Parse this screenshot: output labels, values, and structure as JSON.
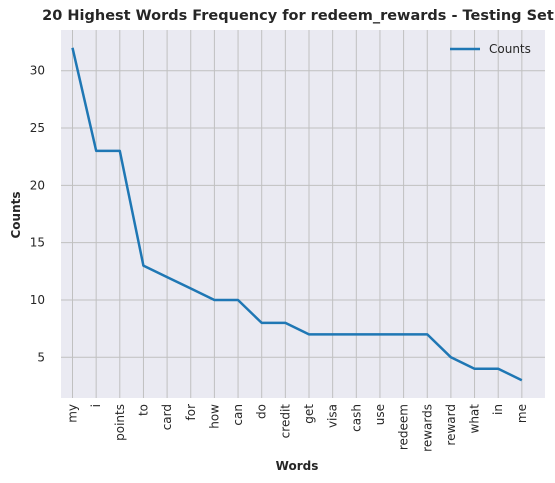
{
  "colors": {
    "plot_background": "#eaeaf2",
    "grid": "#c0c0c0",
    "line": "#1f77b4"
  },
  "chart_data": {
    "type": "line",
    "title": "20 Highest Words Frequency for redeem_rewards - Testing Set",
    "xlabel": "Words",
    "ylabel": "Counts",
    "categories": [
      "my",
      "i",
      "points",
      "to",
      "card",
      "for",
      "how",
      "can",
      "do",
      "credit",
      "get",
      "visa",
      "cash",
      "use",
      "redeem",
      "rewards",
      "reward",
      "what",
      "in",
      "me"
    ],
    "series": [
      {
        "name": "Counts",
        "values": [
          32,
          23,
          23,
          13,
          12,
          11,
          10,
          10,
          8,
          8,
          7,
          7,
          7,
          7,
          7,
          7,
          5,
          4,
          4,
          3
        ]
      }
    ],
    "yticks": [
      5,
      10,
      15,
      20,
      25,
      30
    ],
    "ylim": [
      1.45,
      33.55
    ],
    "grid": true,
    "legend": "top-right"
  }
}
